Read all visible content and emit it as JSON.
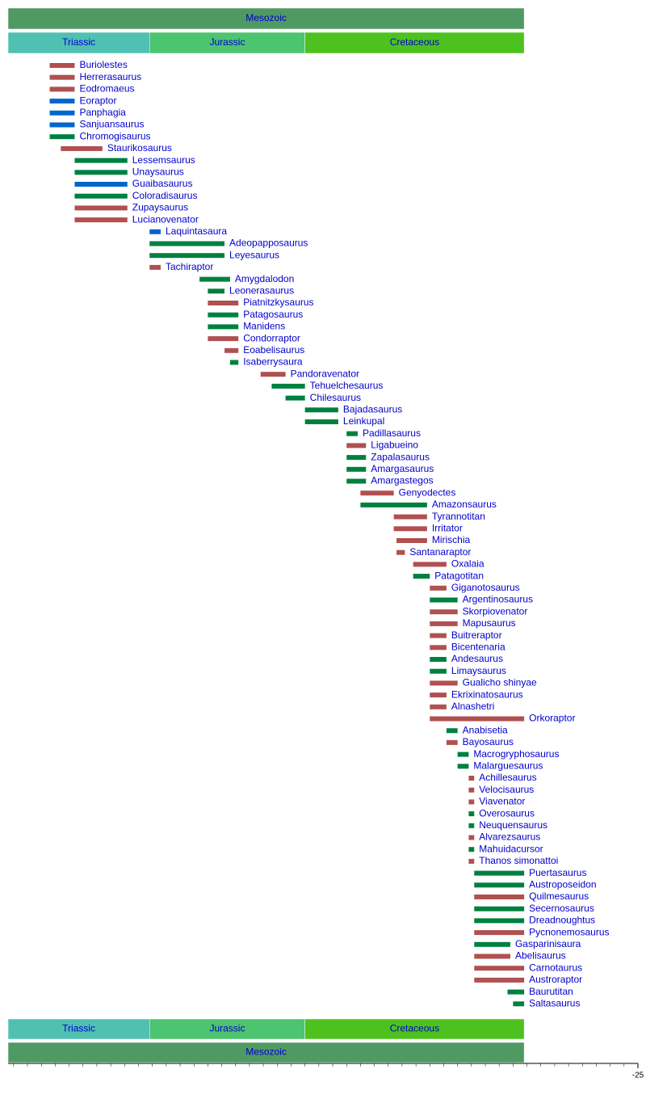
{
  "chart_data": {
    "type": "timeline",
    "xlim": [
      -252,
      -25
    ],
    "xticks": [
      -25
    ],
    "xminorticks": [
      -250,
      -245,
      -240,
      -235,
      -230,
      -225,
      -220,
      -215,
      -210,
      -205,
      -200,
      -195,
      -190,
      -185,
      -180,
      -175,
      -170,
      -165,
      -160,
      -155,
      -150,
      -145,
      -140,
      -135,
      -130,
      -125,
      -120,
      -115,
      -110,
      -105,
      -100,
      -95,
      -90,
      -85,
      -80,
      -75,
      -70,
      -65,
      -60,
      -55,
      -50,
      -45,
      -40,
      -35,
      -30
    ],
    "eras": [
      {
        "name": "Mesozoic",
        "start": -252,
        "end": -66,
        "color": "#4f9a63"
      }
    ],
    "periods": [
      {
        "name": "Triassic",
        "start": -252,
        "end": -201,
        "color": "#50c0b3"
      },
      {
        "name": "Jurassic",
        "start": -201,
        "end": -145,
        "color": "#4dc46f"
      },
      {
        "name": "Cretaceous",
        "start": -145,
        "end": -66,
        "color": "#4dc21f"
      }
    ],
    "taxa": [
      {
        "name": "Buriolestes",
        "start": -237,
        "end": -228,
        "color": "#b05050"
      },
      {
        "name": "Herrerasaurus",
        "start": -237,
        "end": -228,
        "color": "#b05050"
      },
      {
        "name": "Eodromaeus",
        "start": -237,
        "end": -228,
        "color": "#b05050"
      },
      {
        "name": "Eoraptor",
        "start": -237,
        "end": -228,
        "color": "#0066cc"
      },
      {
        "name": "Panphagia",
        "start": -237,
        "end": -228,
        "color": "#0066cc"
      },
      {
        "name": "Sanjuansaurus",
        "start": -237,
        "end": -228,
        "color": "#0066cc"
      },
      {
        "name": "Chromogisaurus",
        "start": -237,
        "end": -228,
        "color": "#008040"
      },
      {
        "name": "Staurikosaurus",
        "start": -233,
        "end": -218,
        "color": "#b05050"
      },
      {
        "name": "Lessemsaurus",
        "start": -228,
        "end": -209,
        "color": "#008040"
      },
      {
        "name": "Unaysaurus",
        "start": -228,
        "end": -209,
        "color": "#008040"
      },
      {
        "name": "Guaibasaurus",
        "start": -228,
        "end": -209,
        "color": "#0066cc"
      },
      {
        "name": "Coloradisaurus",
        "start": -228,
        "end": -209,
        "color": "#008040"
      },
      {
        "name": "Zupaysaurus",
        "start": -228,
        "end": -209,
        "color": "#b05050"
      },
      {
        "name": "Lucianovenator",
        "start": -228,
        "end": -209,
        "color": "#b05050"
      },
      {
        "name": "Laquintasaura",
        "start": -201,
        "end": -197,
        "color": "#0066cc"
      },
      {
        "name": "Adeopapposaurus",
        "start": -201,
        "end": -174,
        "color": "#008040"
      },
      {
        "name": "Leyesaurus",
        "start": -201,
        "end": -174,
        "color": "#008040"
      },
      {
        "name": "Tachiraptor",
        "start": -201,
        "end": -197,
        "color": "#b05050"
      },
      {
        "name": "Amygdalodon",
        "start": -183,
        "end": -172,
        "color": "#008040"
      },
      {
        "name": "Leonerasaurus",
        "start": -180,
        "end": -174,
        "color": "#008040"
      },
      {
        "name": "Piatnitzkysaurus",
        "start": -180,
        "end": -169,
        "color": "#b05050"
      },
      {
        "name": "Patagosaurus",
        "start": -180,
        "end": -169,
        "color": "#008040"
      },
      {
        "name": "Manidens",
        "start": -180,
        "end": -169,
        "color": "#008040"
      },
      {
        "name": "Condorraptor",
        "start": -180,
        "end": -169,
        "color": "#b05050"
      },
      {
        "name": "Eoabelisaurus",
        "start": -174,
        "end": -169,
        "color": "#b05050"
      },
      {
        "name": "Isaberrysaura",
        "start": -172,
        "end": -169,
        "color": "#008040"
      },
      {
        "name": "Pandoravenator",
        "start": -161,
        "end": -152,
        "color": "#b05050"
      },
      {
        "name": "Tehuelchesaurus",
        "start": -157,
        "end": -145,
        "color": "#008040"
      },
      {
        "name": "Chilesaurus",
        "start": -152,
        "end": -145,
        "color": "#008040"
      },
      {
        "name": "Bajadasaurus",
        "start": -145,
        "end": -133,
        "color": "#008040"
      },
      {
        "name": "Leinkupal",
        "start": -145,
        "end": -133,
        "color": "#008040"
      },
      {
        "name": "Padillasaurus",
        "start": -130,
        "end": -126,
        "color": "#008040"
      },
      {
        "name": "Ligabueino",
        "start": -130,
        "end": -123,
        "color": "#b05050"
      },
      {
        "name": "Zapalasaurus",
        "start": -130,
        "end": -123,
        "color": "#008040"
      },
      {
        "name": "Amargasaurus",
        "start": -130,
        "end": -123,
        "color": "#008040"
      },
      {
        "name": "Amargastegos",
        "start": -130,
        "end": -123,
        "color": "#008040"
      },
      {
        "name": "Genyodectes",
        "start": -125,
        "end": -113,
        "color": "#b05050"
      },
      {
        "name": "Amazonsaurus",
        "start": -125,
        "end": -101,
        "color": "#008040"
      },
      {
        "name": "Tyrannotitan",
        "start": -113,
        "end": -101,
        "color": "#b05050"
      },
      {
        "name": "Irritator",
        "start": -113,
        "end": -101,
        "color": "#b05050"
      },
      {
        "name": "Mirischia",
        "start": -112,
        "end": -101,
        "color": "#b05050"
      },
      {
        "name": "Santanaraptor",
        "start": -112,
        "end": -109,
        "color": "#b05050"
      },
      {
        "name": "Oxalaia",
        "start": -106,
        "end": -94,
        "color": "#b05050"
      },
      {
        "name": "Patagotitan",
        "start": -106,
        "end": -100,
        "color": "#008040"
      },
      {
        "name": "Giganotosaurus",
        "start": -100,
        "end": -94,
        "color": "#b05050"
      },
      {
        "name": "Argentinosaurus",
        "start": -100,
        "end": -90,
        "color": "#008040"
      },
      {
        "name": "Skorpiovenator",
        "start": -100,
        "end": -90,
        "color": "#b05050"
      },
      {
        "name": "Mapusaurus",
        "start": -100,
        "end": -90,
        "color": "#b05050"
      },
      {
        "name": "Buitreraptor",
        "start": -100,
        "end": -94,
        "color": "#b05050"
      },
      {
        "name": "Bicentenaria",
        "start": -100,
        "end": -94,
        "color": "#b05050"
      },
      {
        "name": "Andesaurus",
        "start": -100,
        "end": -94,
        "color": "#008040"
      },
      {
        "name": "Limaysaurus",
        "start": -100,
        "end": -94,
        "color": "#008040"
      },
      {
        "name": "Gualicho shinyae",
        "start": -100,
        "end": -90,
        "color": "#b05050"
      },
      {
        "name": "Ekrixinatosaurus",
        "start": -100,
        "end": -94,
        "color": "#b05050"
      },
      {
        "name": "Alnashetri",
        "start": -100,
        "end": -94,
        "color": "#b05050"
      },
      {
        "name": "Orkoraptor",
        "start": -100,
        "end": -66,
        "color": "#b05050"
      },
      {
        "name": "Anabisetia",
        "start": -94,
        "end": -90,
        "color": "#008040"
      },
      {
        "name": "Bayosaurus",
        "start": -94,
        "end": -90,
        "color": "#b05050"
      },
      {
        "name": "Macrogryphosaurus",
        "start": -90,
        "end": -86,
        "color": "#008040"
      },
      {
        "name": "Malarguesaurus",
        "start": -90,
        "end": -86,
        "color": "#008040"
      },
      {
        "name": "Achillesaurus",
        "start": -86,
        "end": -84,
        "color": "#b05050"
      },
      {
        "name": "Velocisaurus",
        "start": -86,
        "end": -84,
        "color": "#b05050"
      },
      {
        "name": "Viavenator",
        "start": -86,
        "end": -84,
        "color": "#b05050"
      },
      {
        "name": "Overosaurus",
        "start": -86,
        "end": -84,
        "color": "#008040"
      },
      {
        "name": "Neuquensaurus",
        "start": -86,
        "end": -84,
        "color": "#008040"
      },
      {
        "name": "Alvarezsaurus",
        "start": -86,
        "end": -84,
        "color": "#b05050"
      },
      {
        "name": "Mahuidacursor",
        "start": -86,
        "end": -84,
        "color": "#008040"
      },
      {
        "name": "Thanos simonattoi",
        "start": -86,
        "end": -84,
        "color": "#b05050"
      },
      {
        "name": "Puertasaurus",
        "start": -84,
        "end": -66,
        "color": "#008040"
      },
      {
        "name": "Austroposeidon",
        "start": -84,
        "end": -66,
        "color": "#008040"
      },
      {
        "name": "Quilmesaurus",
        "start": -84,
        "end": -66,
        "color": "#b05050"
      },
      {
        "name": "Secernosaurus",
        "start": -84,
        "end": -66,
        "color": "#008040"
      },
      {
        "name": "Dreadnoughtus",
        "start": -84,
        "end": -66,
        "color": "#008040"
      },
      {
        "name": "Pycnonemosaurus",
        "start": -84,
        "end": -66,
        "color": "#b05050"
      },
      {
        "name": "Gasparinisaura",
        "start": -84,
        "end": -71,
        "color": "#008040"
      },
      {
        "name": "Abelisaurus",
        "start": -84,
        "end": -71,
        "color": "#b05050"
      },
      {
        "name": "Carnotaurus",
        "start": -84,
        "end": -66,
        "color": "#b05050"
      },
      {
        "name": "Austroraptor",
        "start": -84,
        "end": -66,
        "color": "#b05050"
      },
      {
        "name": "Baurutitan",
        "start": -72,
        "end": -66,
        "color": "#008040"
      },
      {
        "name": "Saltasaurus",
        "start": -70,
        "end": -66,
        "color": "#008040"
      }
    ]
  }
}
